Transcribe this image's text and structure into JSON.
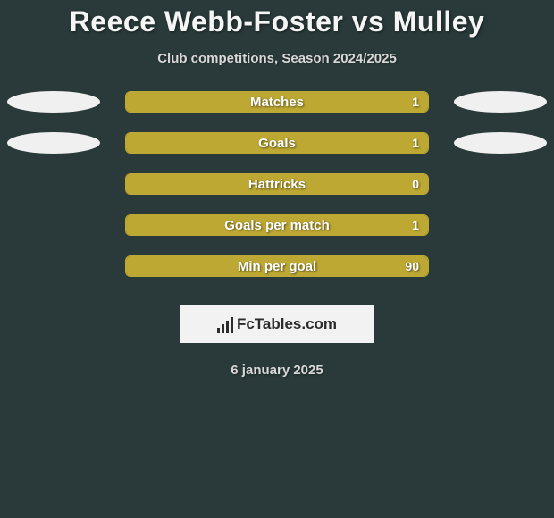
{
  "background_color": "#2a3a3a",
  "title": "Reece Webb-Foster vs Mulley",
  "title_fontsize": 32,
  "title_color": "#f5f5f5",
  "subtitle": "Club competitions, Season 2024/2025",
  "subtitle_color": "#d8d8d8",
  "bar_border_color": "#bda833",
  "bar_fill_color": "#bda833",
  "bar_label_color": "#ffffff",
  "ellipse_color": "#f0f0f0",
  "stats": [
    {
      "label": "Matches",
      "value": "1",
      "fill_pct": 100,
      "left_ellipse": true,
      "right_ellipse": true
    },
    {
      "label": "Goals",
      "value": "1",
      "fill_pct": 100,
      "left_ellipse": true,
      "right_ellipse": true
    },
    {
      "label": "Hattricks",
      "value": "0",
      "fill_pct": 100,
      "left_ellipse": false,
      "right_ellipse": false
    },
    {
      "label": "Goals per match",
      "value": "1",
      "fill_pct": 100,
      "left_ellipse": false,
      "right_ellipse": false
    },
    {
      "label": "Min per goal",
      "value": "90",
      "fill_pct": 100,
      "left_ellipse": false,
      "right_ellipse": false
    }
  ],
  "logo": {
    "text": "FcTables.com",
    "bg": "#f2f2f2",
    "ink": "#2c2c2c"
  },
  "date": "6 january 2025"
}
